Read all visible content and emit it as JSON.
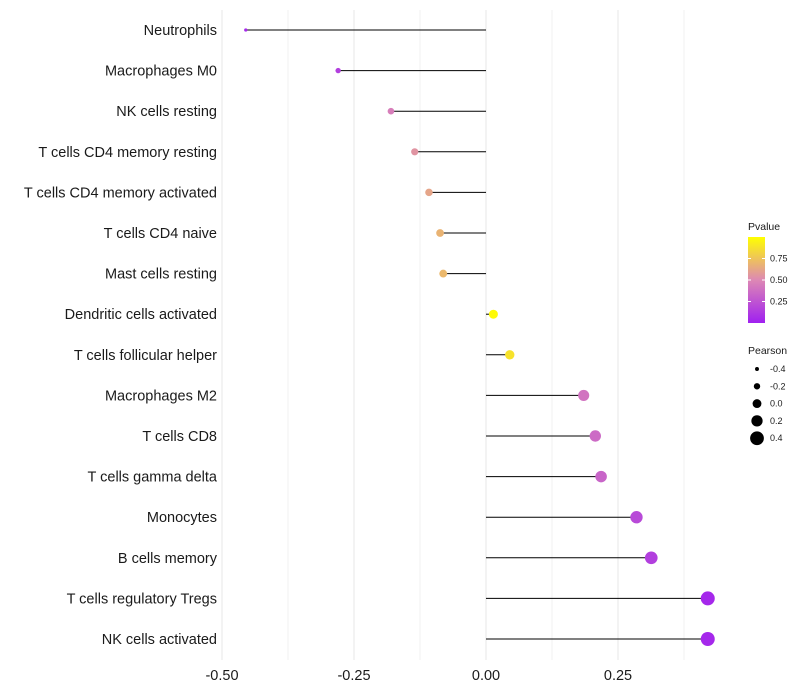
{
  "chart_data": {
    "type": "lollipop",
    "categories": [
      "Neutrophils",
      "Macrophages M0",
      "NK cells resting",
      "T cells CD4 memory resting",
      "T cells CD4 memory activated",
      "T cells CD4 naive",
      "Mast cells resting",
      "Dendritic cells activated",
      "T cells follicular helper",
      "Macrophages M2",
      "T cells CD8",
      "T cells gamma delta",
      "Monocytes",
      "B cells memory",
      "T cells regulatory  Tregs",
      "NK cells activated"
    ],
    "pearson": [
      -0.455,
      -0.28,
      -0.18,
      -0.135,
      -0.108,
      -0.087,
      -0.081,
      0.014,
      0.045,
      0.185,
      0.207,
      0.218,
      0.285,
      0.313,
      0.42,
      0.42
    ],
    "pvalue": [
      0.05,
      0.15,
      0.45,
      0.55,
      0.62,
      0.68,
      0.7,
      0.98,
      0.88,
      0.4,
      0.36,
      0.33,
      0.2,
      0.15,
      0.04,
      0.04
    ],
    "xlim": [
      -0.5,
      0.5
    ],
    "x_ticks": [
      -0.5,
      -0.25,
      0.0,
      0.25
    ],
    "x_tick_labels": [
      "-0.50",
      "-0.25",
      "0.00",
      "0.25"
    ],
    "xlabel": "",
    "ylabel": "",
    "legends": {
      "color": {
        "title": "Pvalue",
        "range": [
          0.0,
          1.0
        ],
        "ticks": [
          0.25,
          0.5,
          0.75
        ],
        "tick_labels": [
          "0.25",
          "0.50",
          "0.75"
        ],
        "low_color": "#a020f0",
        "mid_color": "#dd88b4",
        "high_color": "#ffff00"
      },
      "size": {
        "title": "Pearson",
        "values": [
          -0.4,
          -0.2,
          0.0,
          0.2,
          0.4
        ],
        "labels": [
          "-0.4",
          "-0.2",
          "0.0",
          "0.2",
          "0.4"
        ]
      }
    },
    "grid": true,
    "legend_position": "right"
  }
}
